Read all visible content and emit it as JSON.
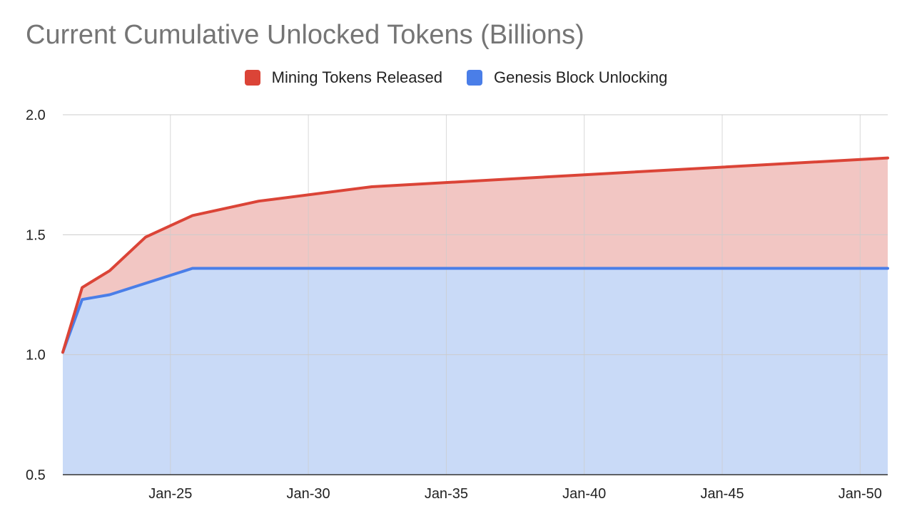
{
  "chart_data": {
    "type": "area",
    "stacked": true,
    "title": "Current Cumulative Unlocked Tokens (Billions)",
    "xlabel": "",
    "ylabel": "",
    "x_ticks": [
      "Jan-25",
      "Jan-30",
      "Jan-35",
      "Jan-40",
      "Jan-45",
      "Jan-50"
    ],
    "x_range": [
      2021.1,
      2051.0
    ],
    "ylim": [
      0.5,
      2.0
    ],
    "y_ticks": [
      0.5,
      1.0,
      1.5,
      2.0
    ],
    "y_tick_labels": [
      "0.5",
      "1.0",
      "1.5",
      "2.0"
    ],
    "grid": true,
    "legend_position": "top",
    "series": [
      {
        "name": "Mining Tokens Released",
        "color": "#db4437",
        "fill": "#f2c6c3",
        "role": "total",
        "points": [
          [
            2021.1,
            1.01
          ],
          [
            2021.8,
            1.28
          ],
          [
            2022.8,
            1.35
          ],
          [
            2024.1,
            1.49
          ],
          [
            2025.8,
            1.58
          ],
          [
            2028.2,
            1.64
          ],
          [
            2032.3,
            1.7
          ],
          [
            2040.0,
            1.75
          ],
          [
            2051.0,
            1.82
          ]
        ]
      },
      {
        "name": "Genesis Block Unlocking",
        "color": "#4a7ee8",
        "fill": "#c9daf7",
        "role": "base",
        "points": [
          [
            2021.1,
            1.01
          ],
          [
            2021.8,
            1.23
          ],
          [
            2022.8,
            1.25
          ],
          [
            2025.8,
            1.36
          ],
          [
            2051.0,
            1.36
          ]
        ]
      }
    ]
  }
}
